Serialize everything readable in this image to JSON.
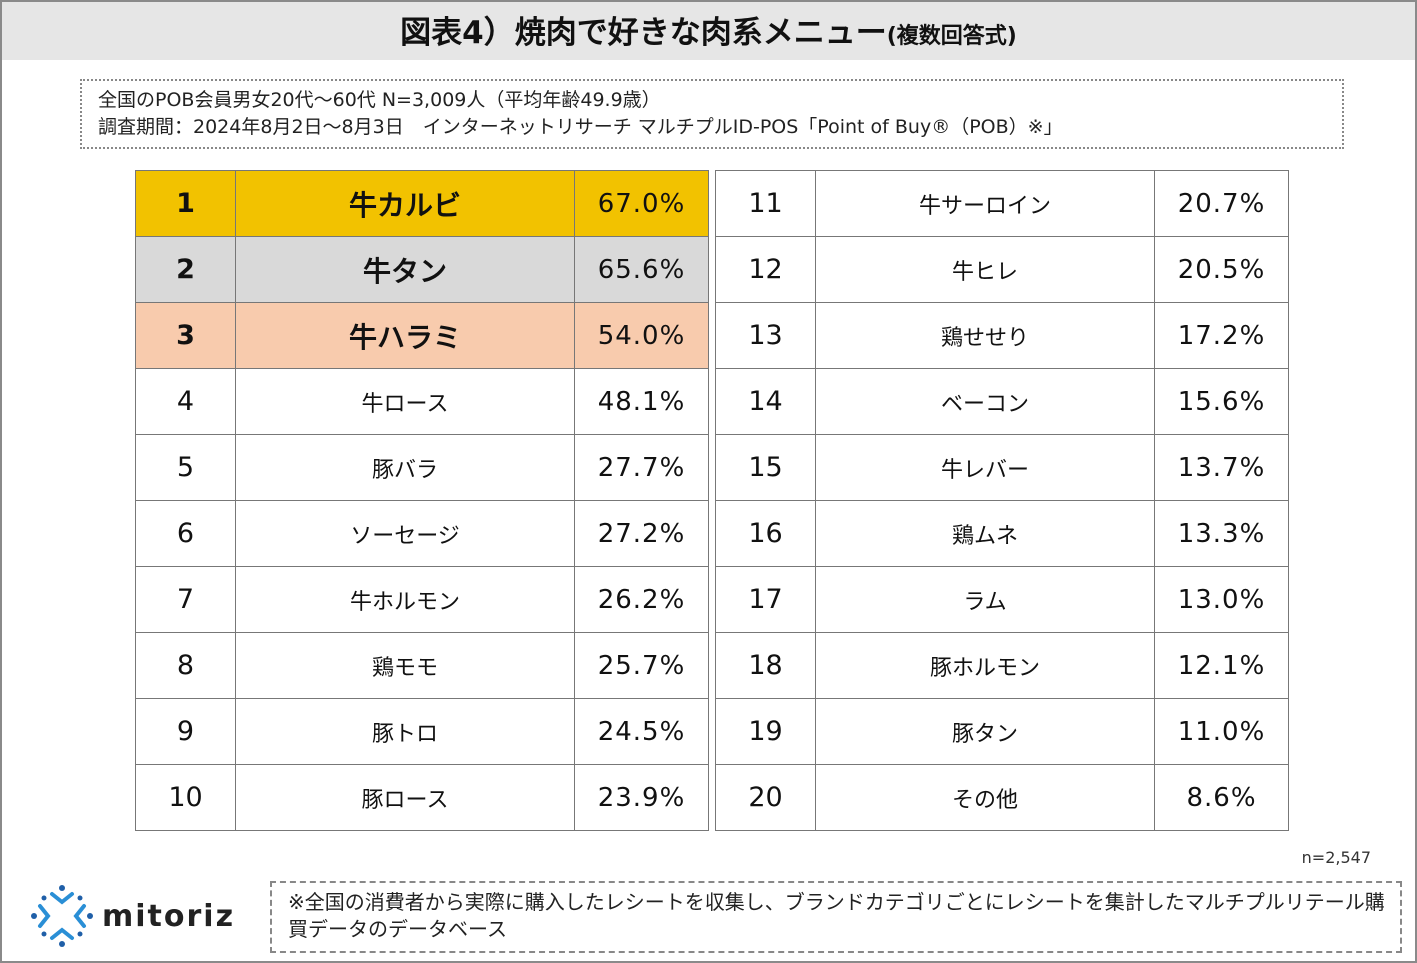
{
  "title": {
    "main": "図表4）焼肉で好きな肉系メニュー",
    "sub": "(複数回答式)"
  },
  "info": {
    "line1": "全国のPOB会員男女20代～60代 N=3,009人（平均年齢49.9歳）",
    "line2": "調査期間：2024年8月2日～8月3日　インターネットリサーチ マルチプルID-POS「Point of Buy®（POB）※」"
  },
  "ranking": [
    {
      "rank": "1",
      "item": "牛カルビ",
      "pct": "67.0%"
    },
    {
      "rank": "2",
      "item": "牛タン",
      "pct": "65.6%"
    },
    {
      "rank": "3",
      "item": "牛ハラミ",
      "pct": "54.0%"
    },
    {
      "rank": "4",
      "item": "牛ロース",
      "pct": "48.1%"
    },
    {
      "rank": "5",
      "item": "豚バラ",
      "pct": "27.7%"
    },
    {
      "rank": "6",
      "item": "ソーセージ",
      "pct": "27.2%"
    },
    {
      "rank": "7",
      "item": "牛ホルモン",
      "pct": "26.2%"
    },
    {
      "rank": "8",
      "item": "鶏モモ",
      "pct": "25.7%"
    },
    {
      "rank": "9",
      "item": "豚トロ",
      "pct": "24.5%"
    },
    {
      "rank": "10",
      "item": "豚ロース",
      "pct": "23.9%"
    },
    {
      "rank": "11",
      "item": "牛サーロイン",
      "pct": "20.7%"
    },
    {
      "rank": "12",
      "item": "牛ヒレ",
      "pct": "20.5%"
    },
    {
      "rank": "13",
      "item": "鶏せせり",
      "pct": "17.2%"
    },
    {
      "rank": "14",
      "item": "ベーコン",
      "pct": "15.6%"
    },
    {
      "rank": "15",
      "item": "牛レバー",
      "pct": "13.7%"
    },
    {
      "rank": "16",
      "item": "鶏ムネ",
      "pct": "13.3%"
    },
    {
      "rank": "17",
      "item": "ラム",
      "pct": "13.0%"
    },
    {
      "rank": "18",
      "item": "豚ホルモン",
      "pct": "12.1%"
    },
    {
      "rank": "19",
      "item": "豚タン",
      "pct": "11.0%"
    },
    {
      "rank": "20",
      "item": "その他",
      "pct": "8.6%"
    }
  ],
  "colors": {
    "first": "#f2c200",
    "second": "#d9d9d9",
    "third": "#f8cbad"
  },
  "sample": "n=2,547",
  "logo": "mitoriz",
  "note": "※全国の消費者から実際に購入したレシートを収集し、ブランドカテゴリごとにレシートを集計したマルチプルリテール購買データのデータベース"
}
